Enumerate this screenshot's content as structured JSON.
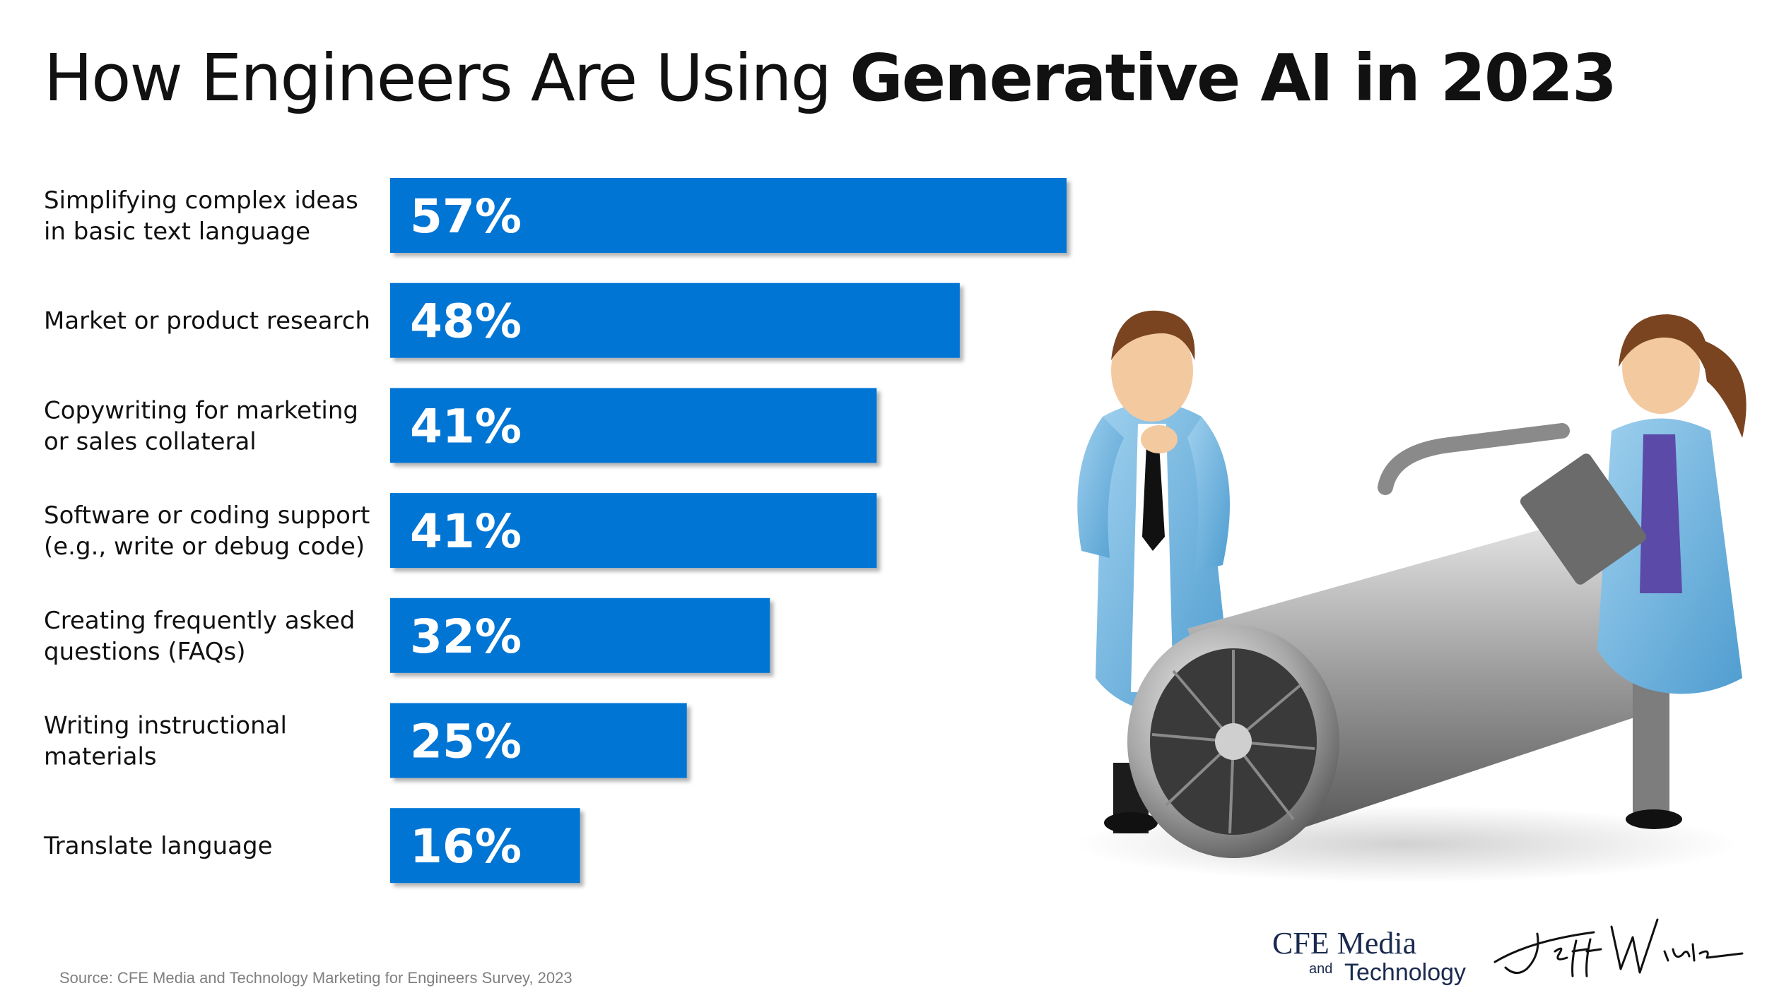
{
  "title": {
    "prefix": "How Engineers Are Using ",
    "emphasis": "Generative AI in 2023"
  },
  "colors": {
    "bar": "#0474d4",
    "bar_label": "#ffffff",
    "text": "#111111",
    "source": "#808080"
  },
  "chart_data": {
    "type": "bar",
    "orientation": "horizontal",
    "title": "How Engineers Are Using Generative AI in 2023",
    "categories": [
      [
        "Simplifying complex ideas",
        "in basic text language"
      ],
      [
        "Market or product research"
      ],
      [
        "Copywriting for marketing",
        "or sales collateral"
      ],
      [
        "Software or coding support",
        "(e.g., write or debug code)"
      ],
      [
        "Creating frequently asked",
        "questions (FAQs)"
      ],
      [
        "Writing instructional",
        "materials"
      ],
      [
        "Translate language"
      ]
    ],
    "values": [
      57,
      48,
      41,
      41,
      32,
      25,
      16
    ],
    "labels": [
      "57%",
      "48%",
      "41%",
      "41%",
      "32%",
      "25%",
      "16%"
    ],
    "xlim": [
      0,
      57
    ],
    "xlabel": "",
    "ylabel": "",
    "grid": false,
    "legend": "none"
  },
  "source": "Source: CFE Media and Technology Marketing for Engineers Survey, 2023",
  "logo": {
    "line1": "CFE Media",
    "and": "and",
    "line2": "Technology"
  },
  "signature": "Jeff Winter",
  "illustration": {
    "icon": "engineers-inspecting-jet-engine-illustration"
  }
}
